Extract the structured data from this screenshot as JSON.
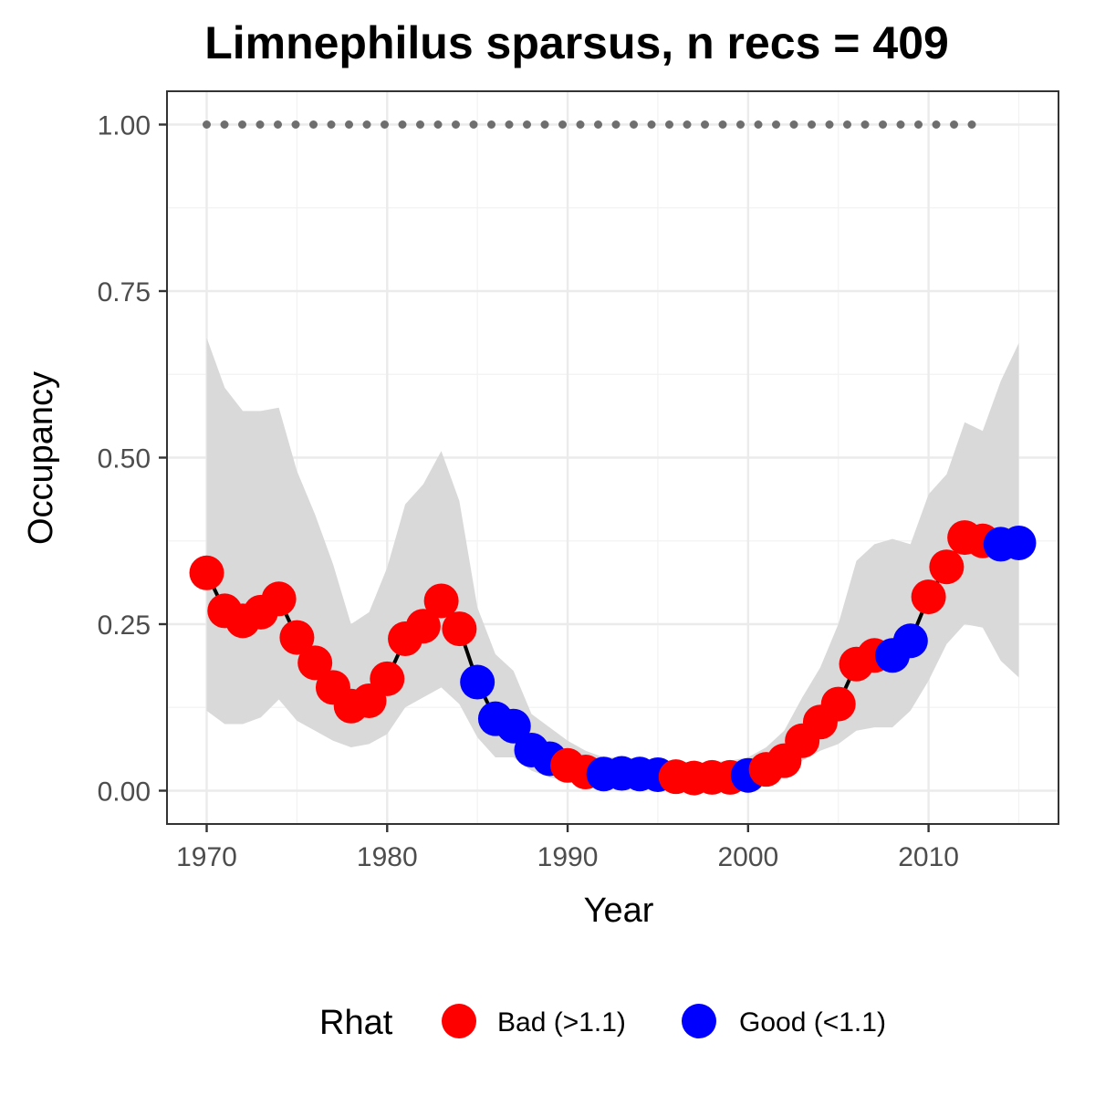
{
  "chart_data": {
    "type": "line",
    "title": "Limnephilus sparsus, n recs = 409",
    "xlabel": "Year",
    "ylabel": "Occupancy",
    "xlim": [
      1967.8,
      2017.2
    ],
    "ylim": [
      -0.05,
      1.05
    ],
    "x_ticks": [
      1970,
      1980,
      1990,
      2000,
      2010
    ],
    "x_tick_labels": [
      "1970",
      "1980",
      "1990",
      "2000",
      "2010"
    ],
    "y_ticks": [
      0,
      0.25,
      0.5,
      0.75,
      1.0
    ],
    "y_tick_labels": [
      "0.00",
      "0.25",
      "0.50",
      "0.75",
      "1.00"
    ],
    "grid": true,
    "legend": {
      "title": "Rhat",
      "position": "bottom",
      "entries": [
        {
          "label": "Bad (>1.1)",
          "color": "#ff0000"
        },
        {
          "label": "Good (<1.1)",
          "color": "#0000ff"
        }
      ]
    },
    "colors": {
      "bad": "#ff0000",
      "good": "#0000ff",
      "ribbon": "#d9d9d9",
      "line": "#000000",
      "reference": "#6e6e6e"
    },
    "reference_line": {
      "y": 1.0,
      "x_range": [
        1970,
        2013
      ],
      "style": "dotted"
    },
    "series": [
      {
        "x": [
          1970,
          1971,
          1972,
          1973,
          1974,
          1975,
          1976,
          1977,
          1978,
          1979,
          1980,
          1981,
          1982,
          1983,
          1984,
          1985,
          1986,
          1987,
          1988,
          1989,
          1990,
          1991,
          1992,
          1993,
          1994,
          1995,
          1996,
          1997,
          1998,
          1999,
          2000,
          2001,
          2002,
          2003,
          2004,
          2005,
          2006,
          2007,
          2008,
          2009,
          2010,
          2011,
          2012,
          2013,
          2014,
          2015
        ],
        "mean": [
          0.327,
          0.27,
          0.255,
          0.268,
          0.288,
          0.23,
          0.192,
          0.155,
          0.127,
          0.135,
          0.168,
          0.228,
          0.247,
          0.285,
          0.243,
          0.163,
          0.108,
          0.097,
          0.061,
          0.048,
          0.038,
          0.028,
          0.025,
          0.026,
          0.025,
          0.024,
          0.021,
          0.019,
          0.02,
          0.02,
          0.023,
          0.032,
          0.045,
          0.075,
          0.103,
          0.13,
          0.19,
          0.203,
          0.203,
          0.225,
          0.291,
          0.336,
          0.38,
          0.375,
          0.37,
          0.372
        ],
        "lower": [
          0.12,
          0.1,
          0.1,
          0.11,
          0.137,
          0.105,
          0.09,
          0.075,
          0.065,
          0.07,
          0.085,
          0.125,
          0.14,
          0.155,
          0.13,
          0.08,
          0.05,
          0.05,
          0.03,
          0.02,
          0.015,
          0.01,
          0.008,
          0.008,
          0.008,
          0.008,
          0.006,
          0.006,
          0.006,
          0.006,
          0.008,
          0.015,
          0.025,
          0.045,
          0.06,
          0.07,
          0.09,
          0.095,
          0.095,
          0.12,
          0.165,
          0.22,
          0.25,
          0.245,
          0.195,
          0.17
        ],
        "upper": [
          0.68,
          0.605,
          0.57,
          0.57,
          0.575,
          0.48,
          0.415,
          0.34,
          0.25,
          0.268,
          0.335,
          0.43,
          0.46,
          0.51,
          0.435,
          0.275,
          0.205,
          0.18,
          0.115,
          0.095,
          0.075,
          0.06,
          0.05,
          0.05,
          0.048,
          0.046,
          0.045,
          0.042,
          0.043,
          0.045,
          0.05,
          0.065,
          0.09,
          0.14,
          0.185,
          0.25,
          0.345,
          0.37,
          0.378,
          0.37,
          0.445,
          0.475,
          0.553,
          0.54,
          0.615,
          0.672
        ],
        "rhat": [
          "bad",
          "bad",
          "bad",
          "bad",
          "bad",
          "bad",
          "bad",
          "bad",
          "bad",
          "bad",
          "bad",
          "bad",
          "bad",
          "bad",
          "bad",
          "good",
          "good",
          "good",
          "good",
          "good",
          "bad",
          "bad",
          "good",
          "good",
          "good",
          "good",
          "bad",
          "bad",
          "bad",
          "bad",
          "good",
          "bad",
          "bad",
          "bad",
          "bad",
          "bad",
          "bad",
          "bad",
          "good",
          "good",
          "bad",
          "bad",
          "bad",
          "bad",
          "good",
          "good"
        ]
      }
    ]
  }
}
